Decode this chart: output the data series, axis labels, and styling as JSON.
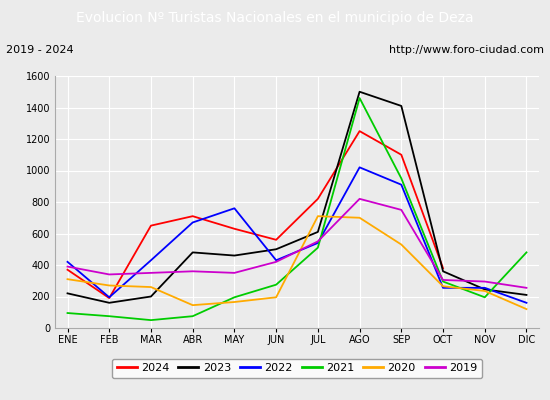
{
  "title": "Evolucion Nº Turistas Nacionales en el municipio de Deza",
  "subtitle_left": "2019 - 2024",
  "subtitle_right": "http://www.foro-ciudad.com",
  "months": [
    "ENE",
    "FEB",
    "MAR",
    "ABR",
    "MAY",
    "JUN",
    "JUL",
    "AGO",
    "SEP",
    "OCT",
    "NOV",
    "DIC"
  ],
  "series": {
    "2024": [
      370,
      190,
      650,
      710,
      630,
      560,
      820,
      1250,
      1100,
      380,
      null,
      null
    ],
    "2023": [
      220,
      160,
      200,
      480,
      460,
      500,
      610,
      1500,
      1410,
      360,
      245,
      210
    ],
    "2022": [
      420,
      195,
      430,
      670,
      760,
      430,
      540,
      1020,
      910,
      255,
      255,
      160
    ],
    "2021": [
      95,
      75,
      50,
      75,
      195,
      275,
      510,
      1460,
      950,
      295,
      195,
      480
    ],
    "2020": [
      310,
      270,
      260,
      145,
      165,
      195,
      710,
      700,
      530,
      265,
      235,
      120
    ],
    "2019": [
      390,
      340,
      350,
      360,
      350,
      420,
      550,
      820,
      750,
      305,
      295,
      255
    ]
  },
  "colors": {
    "2024": "#ff0000",
    "2023": "#000000",
    "2022": "#0000ff",
    "2021": "#00cc00",
    "2020": "#ffaa00",
    "2019": "#cc00cc"
  },
  "ylim": [
    0,
    1600
  ],
  "yticks": [
    0,
    200,
    400,
    600,
    800,
    1000,
    1200,
    1400,
    1600
  ],
  "title_bg_color": "#4d8fcc",
  "title_color": "#ffffff",
  "subtitle_bg_color": "#ffffff",
  "plot_bg_color": "#ebebeb",
  "fig_bg_color": "#ebebeb",
  "grid_color": "#ffffff",
  "border_color": "#aaaaaa",
  "title_fontsize": 10,
  "tick_fontsize": 7,
  "legend_fontsize": 8
}
